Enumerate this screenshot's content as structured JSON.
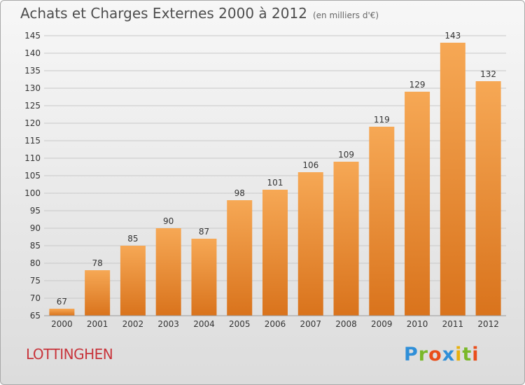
{
  "header": {
    "title": "Achats et Charges Externes 2000 à 2012",
    "subtitle": "(en milliers d'€)"
  },
  "footer": {
    "commune": "LOTTINGHEN",
    "brand_letters": [
      "P",
      "r",
      "o",
      "x",
      "i",
      "t",
      "i"
    ],
    "brand_colors": [
      "#2f8fd8",
      "#7ab829",
      "#e94e1b",
      "#2f8fd8",
      "#e8b10f",
      "#7ab829",
      "#e94e1b"
    ]
  },
  "colors": {
    "bar_top": "#f6a855",
    "bar_bottom": "#d9731c",
    "grid": "#c8c8c8",
    "axis_text": "#333333"
  },
  "chart_data": {
    "type": "bar",
    "title": "Achats et Charges Externes 2000 à 2012",
    "subtitle": "(en milliers d'€)",
    "categories": [
      "2000",
      "2001",
      "2002",
      "2003",
      "2004",
      "2005",
      "2006",
      "2007",
      "2008",
      "2009",
      "2010",
      "2011",
      "2012"
    ],
    "values": [
      67,
      78,
      85,
      90,
      87,
      98,
      101,
      106,
      109,
      119,
      129,
      143,
      132
    ],
    "ylim": [
      65,
      145
    ],
    "yticks": [
      65,
      70,
      75,
      80,
      85,
      90,
      95,
      100,
      105,
      110,
      115,
      120,
      125,
      130,
      135,
      140,
      145
    ],
    "grid": true,
    "data_labels": true
  }
}
